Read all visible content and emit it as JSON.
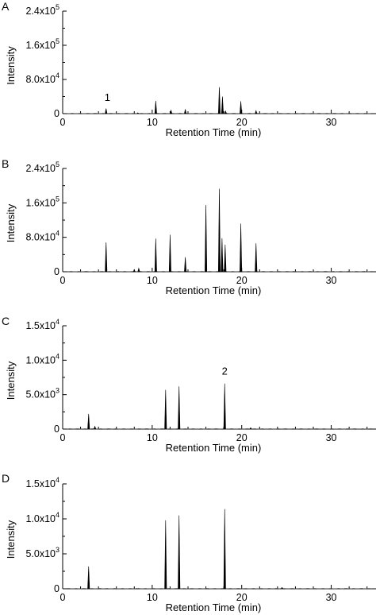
{
  "xlabel": "Retention Time (min)",
  "ylabel": "Intensity",
  "chart_data": [
    {
      "panel": "A",
      "type": "line",
      "xlabel": "Retention Time (min)",
      "ylabel": "Intensity",
      "xlim": [
        0,
        35
      ],
      "ylim": [
        0,
        240000
      ],
      "xticks": [
        "0",
        "10",
        "20",
        "30"
      ],
      "xtick_values": [
        0,
        10,
        20,
        30
      ],
      "yticks": [
        {
          "value": 0,
          "base": "0",
          "exp": ""
        },
        {
          "value": 80000,
          "base": "8.0x10",
          "exp": "4"
        },
        {
          "value": 160000,
          "base": "1.6x10",
          "exp": "5"
        },
        {
          "value": 240000,
          "base": "2.4x10",
          "exp": "5"
        }
      ],
      "peaks": [
        {
          "x": 4.85,
          "y": 12000
        },
        {
          "x": 8.4,
          "y": 2000
        },
        {
          "x": 10.4,
          "y": 30000
        },
        {
          "x": 12.1,
          "y": 8000
        },
        {
          "x": 13.7,
          "y": 10000
        },
        {
          "x": 17.5,
          "y": 62000
        },
        {
          "x": 17.85,
          "y": 40000
        },
        {
          "x": 18.2,
          "y": 6000
        },
        {
          "x": 19.9,
          "y": 29000
        },
        {
          "x": 21.6,
          "y": 7000
        }
      ],
      "annotations": [
        {
          "text": "1",
          "x": 5.0,
          "y": 30000
        }
      ]
    },
    {
      "panel": "B",
      "type": "line",
      "xlabel": "Retention Time (min)",
      "ylabel": "Intensity",
      "xlim": [
        0,
        35
      ],
      "ylim": [
        0,
        240000
      ],
      "xticks": [
        "0",
        "10",
        "20",
        "30"
      ],
      "xtick_values": [
        0,
        10,
        20,
        30
      ],
      "yticks": [
        {
          "value": 0,
          "base": "0",
          "exp": ""
        },
        {
          "value": 80000,
          "base": "8.0x10",
          "exp": "4"
        },
        {
          "value": 160000,
          "base": "1.6x10",
          "exp": "5"
        },
        {
          "value": 240000,
          "base": "2.4x10",
          "exp": "5"
        }
      ],
      "peaks": [
        {
          "x": 4.85,
          "y": 68000
        },
        {
          "x": 8.0,
          "y": 5000
        },
        {
          "x": 8.5,
          "y": 8000
        },
        {
          "x": 10.4,
          "y": 77000
        },
        {
          "x": 12.0,
          "y": 86000
        },
        {
          "x": 13.7,
          "y": 34000
        },
        {
          "x": 16.0,
          "y": 155000
        },
        {
          "x": 17.5,
          "y": 193000
        },
        {
          "x": 17.8,
          "y": 78000
        },
        {
          "x": 18.15,
          "y": 63000
        },
        {
          "x": 19.9,
          "y": 112000
        },
        {
          "x": 21.6,
          "y": 66000
        }
      ],
      "annotations": []
    },
    {
      "panel": "C",
      "type": "line",
      "xlabel": "Retention Time (min)",
      "ylabel": "Intensity",
      "xlim": [
        0,
        35
      ],
      "ylim": [
        0,
        15000
      ],
      "xticks": [
        "0",
        "10",
        "20",
        "30"
      ],
      "xtick_values": [
        0,
        10,
        20,
        30
      ],
      "yticks": [
        {
          "value": 0,
          "base": "0",
          "exp": ""
        },
        {
          "value": 5000,
          "base": "5.0x10",
          "exp": "3"
        },
        {
          "value": 10000,
          "base": "1.0x10",
          "exp": "4"
        },
        {
          "value": 15000,
          "base": "1.5x10",
          "exp": "4"
        }
      ],
      "peaks": [
        {
          "x": 2.9,
          "y": 2200
        },
        {
          "x": 3.6,
          "y": 400
        },
        {
          "x": 11.5,
          "y": 5700
        },
        {
          "x": 13.0,
          "y": 6200
        },
        {
          "x": 18.1,
          "y": 6600
        },
        {
          "x": 21.0,
          "y": 200
        }
      ],
      "annotations": [
        {
          "text": "2",
          "x": 18.1,
          "y": 7900
        }
      ]
    },
    {
      "panel": "D",
      "type": "line",
      "xlabel": "Retention Time (min)",
      "ylabel": "Intensity",
      "xlim": [
        0,
        35
      ],
      "ylim": [
        0,
        15000
      ],
      "xticks": [
        "0",
        "10",
        "20",
        "30"
      ],
      "xtick_values": [
        0,
        10,
        20,
        30
      ],
      "yticks": [
        {
          "value": 0,
          "base": "0",
          "exp": ""
        },
        {
          "value": 5000,
          "base": "5.0x10",
          "exp": "3"
        },
        {
          "value": 10000,
          "base": "1.0x10",
          "exp": "4"
        },
        {
          "value": 15000,
          "base": "1.5x10",
          "exp": "4"
        }
      ],
      "peaks": [
        {
          "x": 2.9,
          "y": 3200
        },
        {
          "x": 11.5,
          "y": 9800
        },
        {
          "x": 13.0,
          "y": 10500
        },
        {
          "x": 18.1,
          "y": 11400
        },
        {
          "x": 24.5,
          "y": 200
        }
      ],
      "annotations": []
    }
  ]
}
